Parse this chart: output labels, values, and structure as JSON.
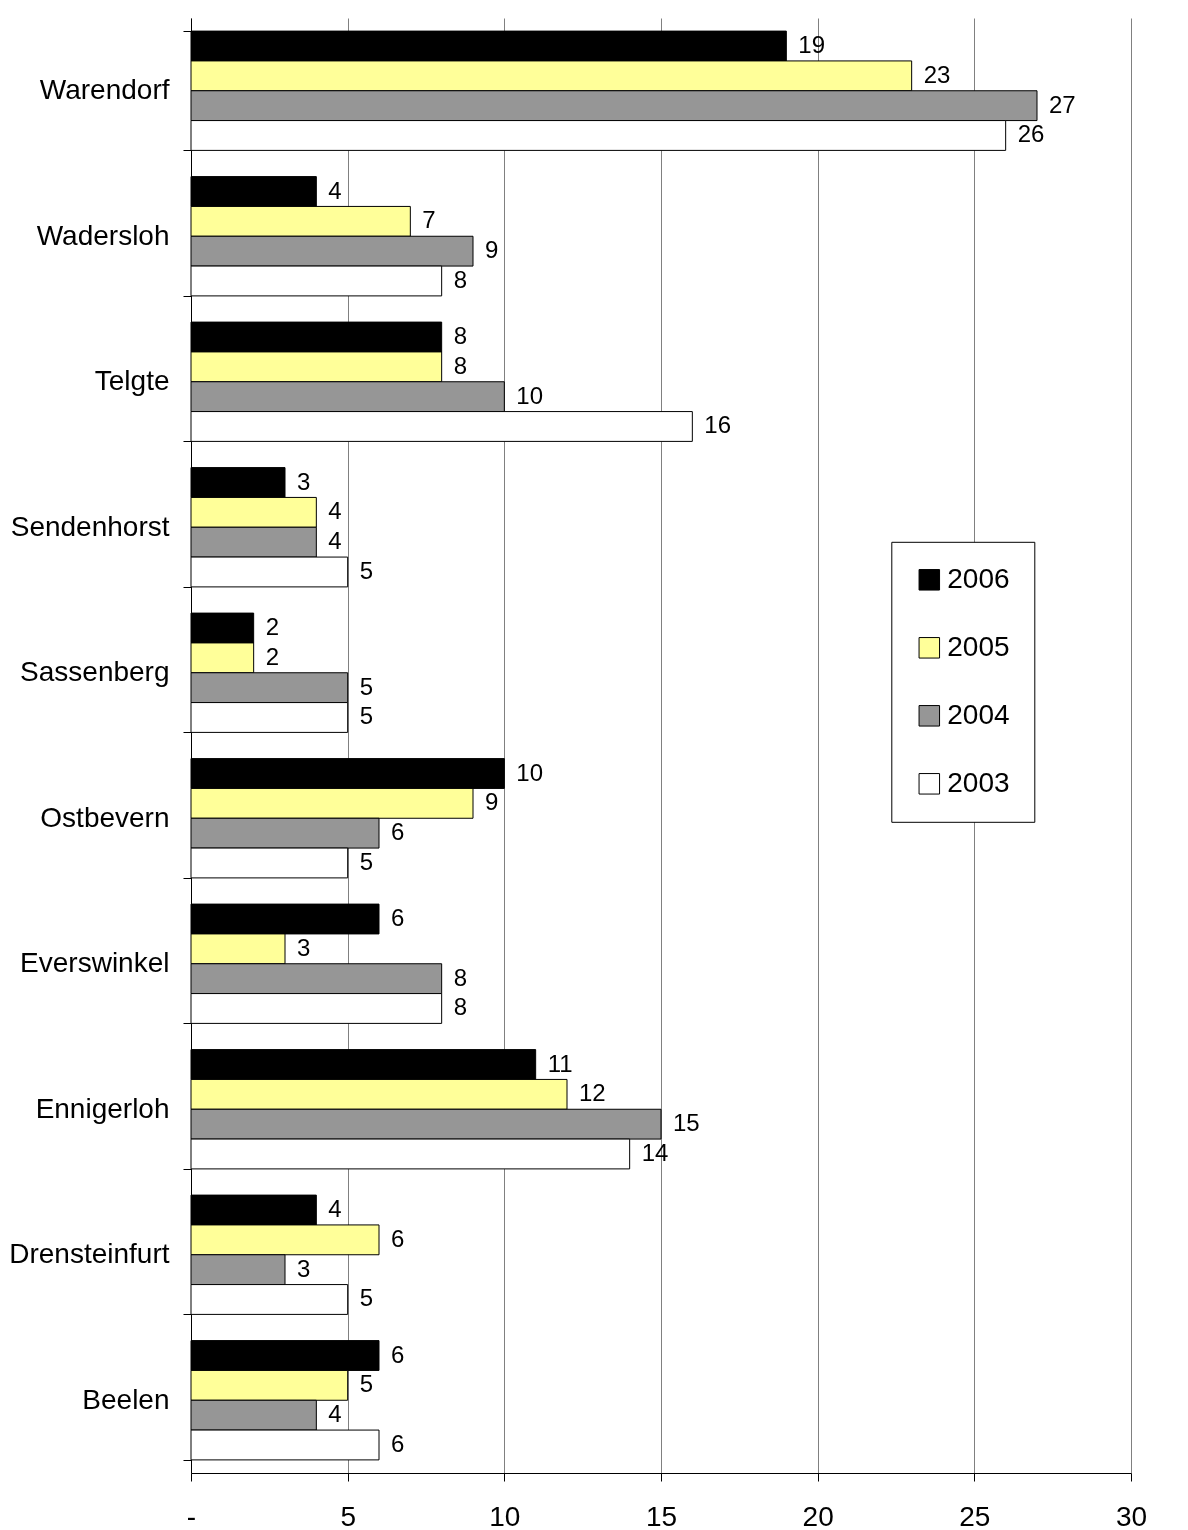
{
  "chart_data": {
    "type": "bar",
    "orientation": "horizontal",
    "categories": [
      "Warendorf",
      "Wadersloh",
      "Telgte",
      "Sendenhorst",
      "Sassenberg",
      "Ostbevern",
      "Everswinkel",
      "Ennigerloh",
      "Drensteinfurt",
      "Beelen"
    ],
    "series": [
      {
        "name": "2006",
        "color": "#000000",
        "values": [
          19,
          4,
          8,
          3,
          2,
          10,
          6,
          11,
          4,
          6
        ]
      },
      {
        "name": "2005",
        "color": "#ffff99",
        "values": [
          23,
          7,
          8,
          4,
          2,
          9,
          3,
          12,
          6,
          5
        ]
      },
      {
        "name": "2004",
        "color": "#969696",
        "values": [
          27,
          9,
          10,
          4,
          5,
          6,
          8,
          15,
          3,
          4
        ]
      },
      {
        "name": "2003",
        "color": "#ffffff",
        "values": [
          26,
          8,
          16,
          5,
          5,
          5,
          8,
          14,
          5,
          6
        ]
      }
    ],
    "xlim": [
      0,
      30
    ],
    "xticks": [
      {
        "value": 0,
        "label": "-"
      },
      5,
      10,
      15,
      20,
      25,
      30
    ],
    "grid": "x",
    "legend": "right",
    "data_labels": true
  }
}
